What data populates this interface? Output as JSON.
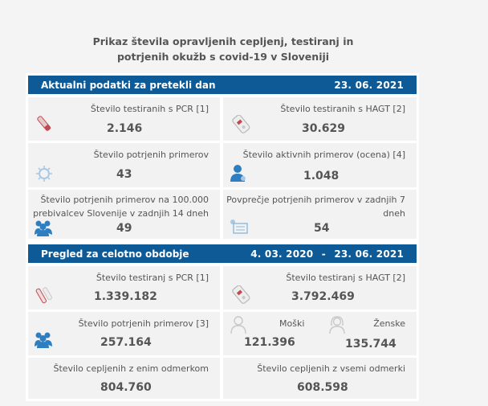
{
  "title": "Prikaz števila opravljenih cepljenj, testiranj in potrjenih okužb s covid-19 v Sloveniji",
  "section1": {
    "header_label": "Aktualni podatki za pretekli dan",
    "header_date": "23. 06. 2021",
    "pcr_label": "Število testiranih s PCR [1]",
    "pcr_value": "2.146",
    "hagt_label": "Število testiranih s HAGT [2]",
    "hagt_value": "30.629",
    "confirmed_label": "Število potrjenih primerov",
    "confirmed_value": "43",
    "active_label": "Število aktivnih primerov (ocena) [4]",
    "active_value": "1.048",
    "per100k_label_line1": "Število potrjenih primerov na 100.000",
    "per100k_label_line2": "prebivalcev Slovenije v zadnjih 14 dneh",
    "per100k_value": "49",
    "avg7_label_line1": "Povprečje potrjenih primerov v zadnjih 7",
    "avg7_label_line2": "dneh",
    "avg7_value": "54"
  },
  "section2": {
    "header_label": "Pregled za celotno obdobje",
    "header_date_from": "4. 03. 2020",
    "header_dash": "-",
    "header_date_to": "23. 06. 2021",
    "pcr_label": "Število testiranj s PCR [1]",
    "pcr_value": "1.339.182",
    "hagt_label": "Število testiranj s HAGT [2]",
    "hagt_value": "3.792.469",
    "confirmed_label": "Število potrjenih primerov [3]",
    "confirmed_value": "257.164",
    "male_label": "Moški",
    "male_value": "121.396",
    "female_label": "Ženske",
    "female_value": "135.744",
    "vacc_one_label": "Število cepljenih z enim odmerkom",
    "vacc_one_value": "804.760",
    "vacc_all_label": "Število cepljenih z vsemi odmerki",
    "vacc_all_value": "608.598"
  },
  "colors": {
    "header_bg": "#0e5a96",
    "cell_bg": "#f2f2f2",
    "icon_light": "#c8c8c8",
    "icon_blue": "#2f7fc0",
    "icon_red": "#c24a52"
  },
  "icons": [
    "swab-tube-icon",
    "hagt-test-icon",
    "virus-icon",
    "person-icon",
    "people-group-icon",
    "calendar-icon",
    "test-tubes-icon",
    "male-person-icon",
    "female-person-icon"
  ]
}
